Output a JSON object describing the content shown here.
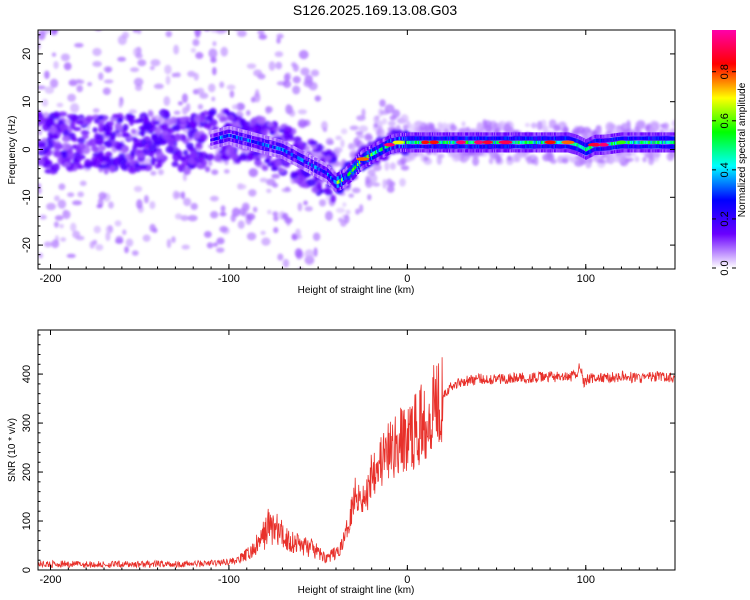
{
  "title": "S126.2025.169.13.08.G03",
  "chart_data": [
    {
      "type": "heatmap",
      "xlabel": "Height of straight line (km)",
      "ylabel": "Frequency (Hz)",
      "xlim": [
        -207,
        150
      ],
      "ylim": [
        -25,
        25
      ],
      "xticks": [
        -200,
        -100,
        0,
        100
      ],
      "yticks": [
        -20,
        -10,
        0,
        10,
        20
      ],
      "colorbar": {
        "label": "Normalized spectral amplitude",
        "range": [
          0,
          0.97
        ],
        "ticks": [
          0.0,
          0.2,
          0.4,
          0.6,
          0.8
        ],
        "tick_labels": [
          "0.0",
          "0.2",
          "0.4",
          "0.6",
          "0.8"
        ],
        "colormap": [
          "#ffffff",
          "#6a00ff",
          "#0000ff",
          "#00ffff",
          "#00ff00",
          "#ffff00",
          "#ff0000",
          "#ff00aa"
        ]
      },
      "ridge": {
        "x": [
          -205,
          -180,
          -160,
          -140,
          -120,
          -100,
          -90,
          -80,
          -70,
          -60,
          -50,
          -45,
          -40,
          -35,
          -30,
          -25,
          -20,
          -15,
          -10,
          -5,
          0,
          5,
          10,
          20,
          30,
          40,
          50,
          60,
          70,
          80,
          90,
          95,
          100,
          105,
          110,
          120,
          130,
          140,
          150
        ],
        "y": [
          1,
          2,
          1,
          2,
          1,
          3,
          2,
          1,
          0,
          -2,
          -4,
          -5,
          -7,
          -6,
          -4,
          -2,
          -1,
          0,
          1,
          1.5,
          1.5,
          1.5,
          1.5,
          1.5,
          1.5,
          1.5,
          1.5,
          1.5,
          1.5,
          1.5,
          1.5,
          1,
          0,
          1,
          1,
          1.5,
          1.5,
          1.5,
          1.5
        ]
      }
    },
    {
      "type": "line",
      "xlabel": "Height of straight line (km)",
      "ylabel": "SNR (10 * v/v)",
      "xlim": [
        -207,
        150
      ],
      "ylim": [
        0,
        490
      ],
      "xticks": [
        -200,
        -100,
        0,
        100
      ],
      "yticks": [
        0,
        100,
        200,
        300,
        400
      ],
      "color": "#e8302a",
      "series": [
        {
          "x": [
            -207,
            -190,
            -170,
            -150,
            -130,
            -115,
            -105,
            -95,
            -88,
            -82,
            -78,
            -74,
            -70,
            -66,
            -62,
            -58,
            -54,
            -50,
            -46,
            -42,
            -38,
            -34,
            -30,
            -27,
            -24,
            -22,
            -20,
            -16,
            -12,
            -8,
            -4,
            0,
            4,
            8,
            12,
            16,
            20,
            25,
            30,
            40,
            50,
            60,
            70,
            80,
            90,
            95,
            97,
            99,
            101,
            105,
            110,
            120,
            130,
            140,
            150
          ],
          "y": [
            12,
            12,
            11,
            12,
            12,
            13,
            15,
            20,
            35,
            60,
            90,
            85,
            70,
            60,
            55,
            50,
            45,
            35,
            25,
            30,
            40,
            80,
            150,
            160,
            140,
            160,
            210,
            220,
            230,
            250,
            260,
            270,
            280,
            300,
            320,
            350,
            360,
            375,
            385,
            390,
            390,
            392,
            392,
            395,
            392,
            400,
            420,
            380,
            390,
            392,
            392,
            395,
            392,
            395,
            392
          ]
        }
      ]
    }
  ]
}
